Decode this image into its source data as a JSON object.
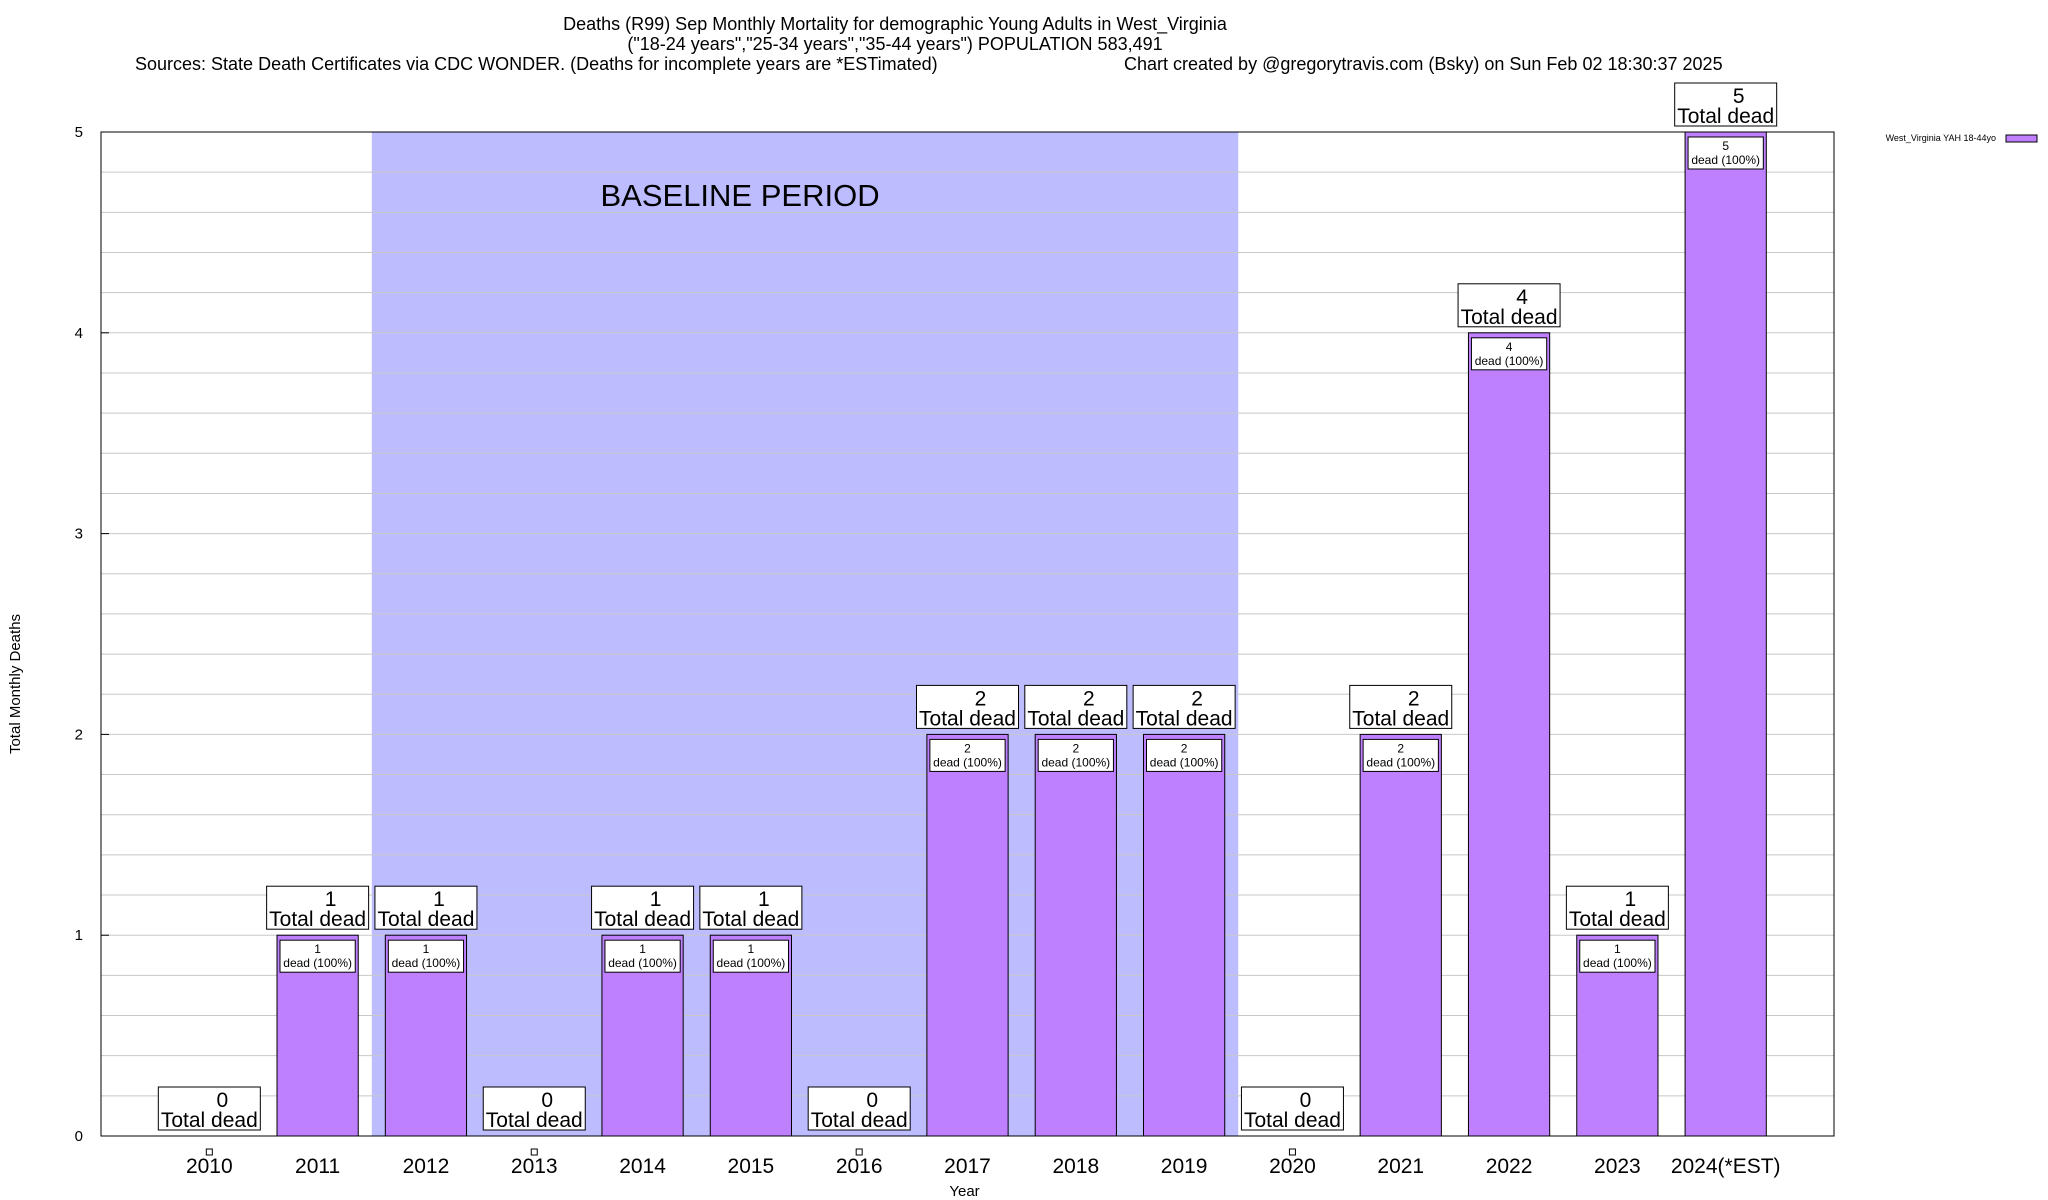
{
  "header": {
    "title_line1": "Deaths (R99) Sep Monthly Mortality for demographic Young Adults in West_Virginia",
    "title_line2": "(\"18-24 years\",\"25-34 years\",\"35-44 years\") POPULATION 583,491",
    "sources": "Sources: State Death Certificates via CDC WONDER. (Deaths for incomplete years are *ESTimated)",
    "credit": "Chart created by @gregorytravis.com (Bsky) on Sun Feb 02 18:30:37 2025"
  },
  "chart_data": {
    "type": "bar",
    "categories": [
      "2010",
      "2011",
      "2012",
      "2013",
      "2014",
      "2015",
      "2016",
      "2017",
      "2018",
      "2019",
      "2020",
      "2021",
      "2022",
      "2023",
      "2024(*EST)"
    ],
    "series": [
      {
        "name": "West_Virginia YAH 18-44yo",
        "values": [
          0,
          1,
          1,
          0,
          1,
          1,
          0,
          2,
          2,
          2,
          0,
          2,
          4,
          1,
          5
        ]
      }
    ],
    "total_label": "Total dead",
    "inner_label_suffix": "dead (100%)",
    "xlabel": "Year",
    "ylabel": "Total Monthly Deaths",
    "ylim": [
      0,
      5
    ],
    "yticks": [
      0,
      1,
      2,
      3,
      4,
      5
    ],
    "grid": true,
    "legend_position": "top-right",
    "baseline": {
      "label": "BASELINE PERIOD",
      "start": "2012",
      "end": "2019"
    },
    "colors": {
      "bar": "#bf80ff",
      "baseline": "#bcbcff",
      "grid": "#c8c8c8"
    }
  }
}
